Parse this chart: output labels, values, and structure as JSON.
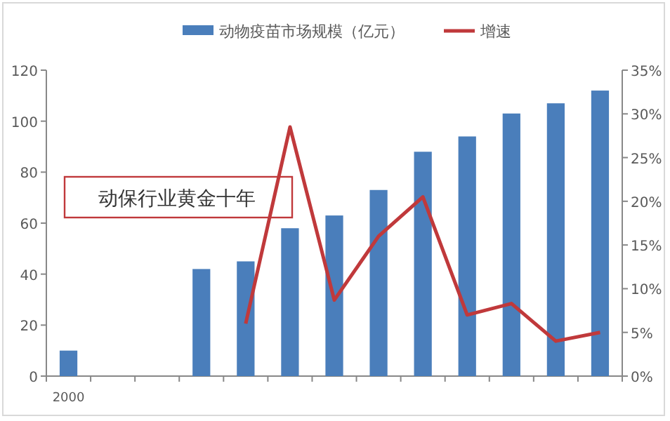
{
  "chart_data": {
    "type": "bar",
    "categories": [
      "2000",
      null,
      null,
      null,
      null,
      null,
      null,
      null,
      null,
      null,
      null,
      null,
      null
    ],
    "series": [
      {
        "name": "动物疫苗市场规模（亿元）",
        "color": "#4a7ebb",
        "values": [
          10,
          null,
          null,
          42,
          45,
          58,
          63,
          73,
          88,
          94,
          103,
          107,
          112
        ]
      },
      {
        "name": "增速",
        "type": "line",
        "axis": "y2",
        "color": "#c0393b",
        "values": [
          null,
          null,
          null,
          null,
          6,
          28.5,
          8.7,
          16,
          20.5,
          7,
          8.3,
          4,
          5
        ]
      }
    ],
    "ylim": [
      0,
      120
    ],
    "yticks": [
      0,
      20,
      40,
      60,
      80,
      100,
      120
    ],
    "y2lim": [
      0,
      35
    ],
    "y2ticks": [
      {
        "value": 0,
        "label": "0%"
      },
      {
        "value": 5,
        "label": "5%"
      },
      {
        "value": 10,
        "label": "10%"
      },
      {
        "value": 15,
        "label": "15%"
      },
      {
        "value": 20,
        "label": "20%"
      },
      {
        "value": 25,
        "label": "25%"
      },
      {
        "value": 30,
        "label": "30%"
      },
      {
        "value": 35,
        "label": "35%"
      }
    ],
    "annotations": [
      "动保行业黄金十年"
    ],
    "legend": "top",
    "grid": false
  }
}
